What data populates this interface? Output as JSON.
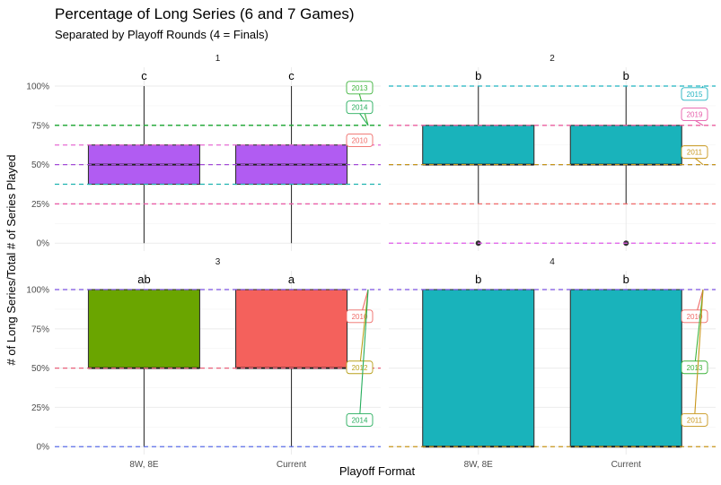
{
  "chart_data": {
    "type": "box",
    "title": "Percentage of Long Series (6 and 7 Games)",
    "subtitle": "Separated by Playoff Rounds (4 = Finals)",
    "xlabel": "Playoff Format",
    "ylabel": "# of Long Series/Total # of Series Played",
    "categories": [
      "8W, 8E",
      "Current"
    ],
    "y_ticks": [
      "0%",
      "25%",
      "50%",
      "75%",
      "100%"
    ],
    "ylim": [
      -0.05,
      1.12
    ],
    "grid": true,
    "colors": {
      "purple": "#b15cf2",
      "teal": "#19b3bb",
      "green": "#6aa500",
      "red": "#f4615c"
    },
    "panels": [
      {
        "label": "1",
        "boxes": [
          {
            "category": "8W, 8E",
            "min": 0,
            "q1": 0.375,
            "median": 0.5,
            "q3": 0.625,
            "max": 1.0,
            "color": "#b15cf2",
            "letter": "c"
          },
          {
            "category": "Current",
            "min": 0,
            "q1": 0.375,
            "median": 0.5,
            "q3": 0.625,
            "max": 1.0,
            "color": "#b15cf2",
            "letter": "c"
          }
        ],
        "hlines": [
          {
            "y": 0.75,
            "color": "#1db34a"
          },
          {
            "y": 0.75,
            "color": "#26a93a"
          },
          {
            "y": 0.625,
            "color": "#e76bd3"
          },
          {
            "y": 0.5,
            "color": "#a34bd8"
          },
          {
            "y": 0.375,
            "color": "#1fb3b0"
          },
          {
            "y": 0.25,
            "color": "#ea5ea8"
          }
        ],
        "labels": [
          {
            "text": "2013",
            "y": 0.75,
            "ly": 0.99,
            "color": "#3db33b"
          },
          {
            "text": "2014",
            "y": 0.75,
            "ly": 0.865,
            "color": "#26ad5c"
          },
          {
            "text": "2010",
            "y": 0.625,
            "ly": 0.655,
            "color": "#ef6a66"
          }
        ]
      },
      {
        "label": "2",
        "boxes": [
          {
            "category": "8W, 8E",
            "min": 0.25,
            "q1": 0.5,
            "median": 0.5,
            "q3": 0.75,
            "max": 1.0,
            "color": "#19b3bb",
            "letter": "b",
            "outliers": [
              0
            ]
          },
          {
            "category": "Current",
            "min": 0.25,
            "q1": 0.5,
            "median": 0.5,
            "q3": 0.75,
            "max": 1.0,
            "color": "#19b3bb",
            "letter": "b",
            "outliers": [
              0
            ]
          }
        ],
        "hlines": [
          {
            "y": 1.0,
            "color": "#1fb3c0"
          },
          {
            "y": 0.75,
            "color": "#ea5e9e"
          },
          {
            "y": 0.5,
            "color": "#5e79e8"
          },
          {
            "y": 0.5,
            "color": "#c8961a"
          },
          {
            "y": 0.25,
            "color": "#f07070"
          },
          {
            "y": 0,
            "color": "#e05ae8"
          }
        ],
        "labels": [
          {
            "text": "2015",
            "y": 1.0,
            "ly": 0.95,
            "color": "#1fb3c0"
          },
          {
            "text": "2019",
            "y": 0.75,
            "ly": 0.82,
            "color": "#e65aa8"
          },
          {
            "text": "2011",
            "y": 0.5,
            "ly": 0.58,
            "color": "#c8961a"
          }
        ]
      },
      {
        "label": "3",
        "boxes": [
          {
            "category": "8W, 8E",
            "min": 0,
            "q1": 0.5,
            "median": 0.5,
            "q3": 1.0,
            "max": 1.0,
            "color": "#6aa500",
            "letter": "ab"
          },
          {
            "category": "Current",
            "min": 0,
            "q1": 0.5,
            "median": 0.5,
            "q3": 1.0,
            "max": 1.0,
            "color": "#f4615c",
            "letter": "a"
          }
        ],
        "hlines": [
          {
            "y": 1.0,
            "color": "#7b52e0"
          },
          {
            "y": 0.5,
            "color": "#e8607a"
          },
          {
            "y": 0,
            "color": "#5a6ee8"
          }
        ],
        "labels": [
          {
            "text": "2010",
            "y": 1.0,
            "ly": 0.83,
            "color": "#ef6a66"
          },
          {
            "text": "2012",
            "y": 1.0,
            "ly": 0.505,
            "color": "#b8a01a"
          },
          {
            "text": "2014",
            "y": 1.0,
            "ly": 0.17,
            "color": "#26ad5c"
          }
        ]
      },
      {
        "label": "4",
        "boxes": [
          {
            "category": "8W, 8E",
            "min": 0,
            "q1": 0,
            "median": 0,
            "q3": 1.0,
            "max": 1.0,
            "color": "#19b3bb",
            "letter": "b"
          },
          {
            "category": "Current",
            "min": 0,
            "q1": 0,
            "median": 0,
            "q3": 1.0,
            "max": 1.0,
            "color": "#19b3bb",
            "letter": "b"
          }
        ],
        "hlines": [
          {
            "y": 1.0,
            "color": "#7b52e0"
          },
          {
            "y": 0,
            "color": "#c8961a"
          }
        ],
        "labels": [
          {
            "text": "2010",
            "y": 1.0,
            "ly": 0.83,
            "color": "#ef6a66"
          },
          {
            "text": "2013",
            "y": 1.0,
            "ly": 0.505,
            "color": "#3db33b"
          },
          {
            "text": "2011",
            "y": 1.0,
            "ly": 0.17,
            "color": "#c8961a"
          }
        ]
      }
    ]
  }
}
